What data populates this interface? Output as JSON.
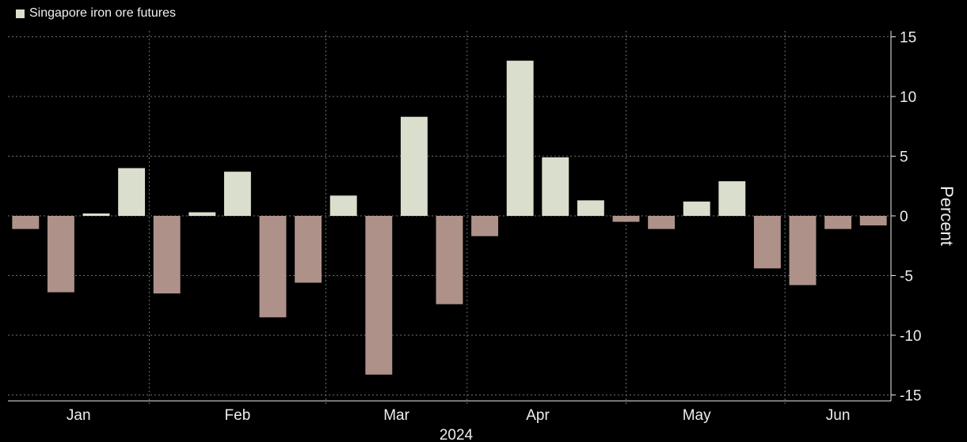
{
  "legend": {
    "label": "Singapore iron ore futures"
  },
  "chart_data": {
    "type": "bar",
    "title": "",
    "xlabel": "2024",
    "ylabel": "Percent",
    "ylim": [
      -15.5,
      15.5
    ],
    "yticks": [
      15,
      10,
      5,
      0,
      -5,
      -10,
      -15
    ],
    "month_labels": [
      "Jan",
      "Feb",
      "Mar",
      "Apr",
      "May",
      "Jun"
    ],
    "grid": true,
    "legend_position": "top-left",
    "series": [
      {
        "name": "Singapore iron ore futures",
        "values": [
          -1.1,
          -6.4,
          0.2,
          4.0,
          -6.5,
          0.3,
          3.7,
          -8.5,
          -5.6,
          1.7,
          -13.3,
          8.3,
          -7.4,
          -1.7,
          13.0,
          4.9,
          1.3,
          -0.5,
          -1.1,
          1.2,
          2.9,
          -4.4,
          -5.8,
          -1.1,
          -0.8
        ]
      }
    ],
    "colors": {
      "positive": "#d9dfcc",
      "negative": "#ae9289",
      "grid": "#6f6f6f",
      "text": "#ededed"
    }
  }
}
